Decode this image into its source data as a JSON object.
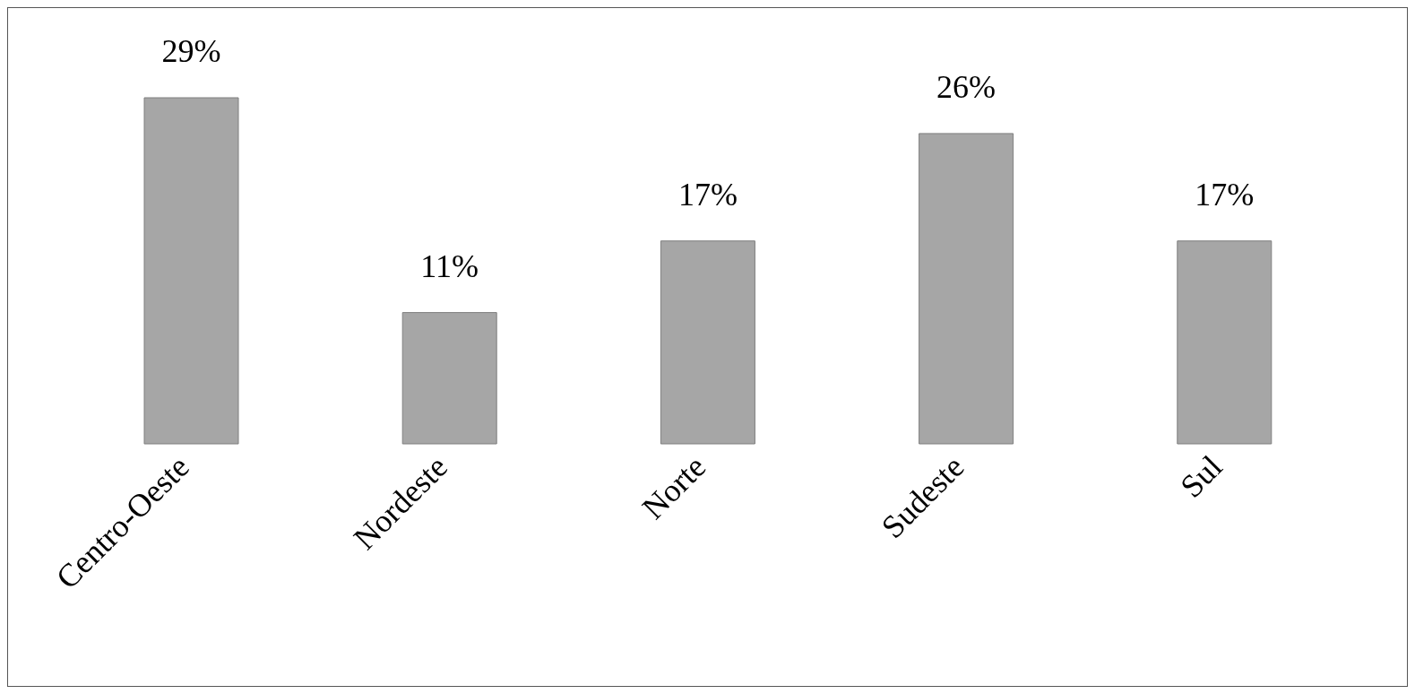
{
  "chart_data": {
    "type": "bar",
    "categories": [
      "Centro-Oeste",
      "Nordeste",
      "Norte",
      "Sudeste",
      "Sul"
    ],
    "values": [
      29,
      11,
      17,
      26,
      17
    ],
    "value_labels": [
      "29%",
      "11%",
      "17%",
      "26%",
      "17%"
    ],
    "color": "#a6a6a6",
    "tick_labels": "x",
    "grid": false,
    "legend": false
  }
}
